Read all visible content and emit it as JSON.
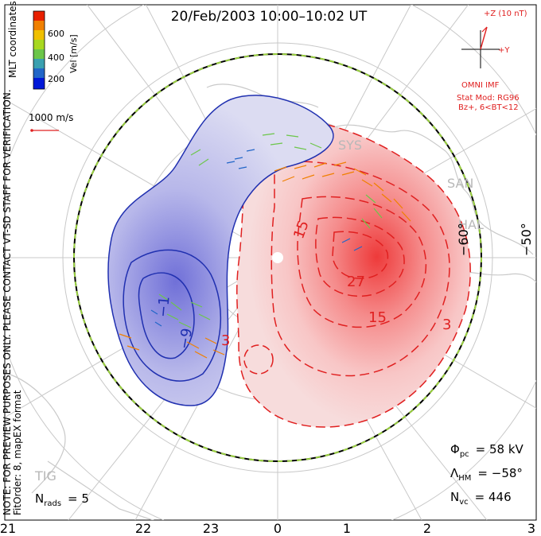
{
  "header": {
    "title": "20/Feb/2003 10:00–10:02 UT"
  },
  "colorbar": {
    "title": "Vel [m/s]",
    "ticks": [
      "600",
      "400",
      "200"
    ],
    "colors": [
      "#0018d8",
      "#2266c8",
      "#3aa0b0",
      "#6cc64a",
      "#a8d820",
      "#f0c000",
      "#f08000",
      "#e82000"
    ]
  },
  "coord_label": "MLT coordinates",
  "scale_vector": {
    "label": "1000 m/s"
  },
  "imf": {
    "z_label": "+Z (10 nT)",
    "y_label": "+Y",
    "source": "OMNI IMF",
    "model_line1": "Stat Mod: RG96",
    "model_line2": "Bz+, 6<BT<12"
  },
  "preview_note": "NOTE: FOR PREVIEW PURPOSES ONLY. PLEASE CONTACT VT-SD STAFF FOR VERIFICATION.",
  "fit_note": "FitOrder: 8, mapEX format",
  "stats": {
    "phi_symbol": "Φ",
    "phi_sub": "pc",
    "phi_value": "= 58 kV",
    "lambda_symbol": "Λ",
    "lambda_sub": "HM",
    "lambda_value": "= −58°",
    "nvc_symbol": "N",
    "nvc_sub": "vc",
    "nvc_value": "= 446",
    "nrads_symbol": "N",
    "nrads_sub": "rads",
    "nrads_value": "= 5"
  },
  "latitude_labels": [
    "−60°",
    "−50°"
  ],
  "mlt_labels": [
    "21",
    "22",
    "23",
    "0",
    "1",
    "2",
    "3"
  ],
  "contours": {
    "positive_labels": [
      "27",
      "15",
      "15",
      "3",
      "3"
    ],
    "negative_labels": [
      "−9",
      "−1"
    ],
    "positive_color": "#e02020",
    "negative_color": "#2030b0"
  },
  "stations": [
    "SYS",
    "SAN",
    "HAL",
    "TIG"
  ]
}
